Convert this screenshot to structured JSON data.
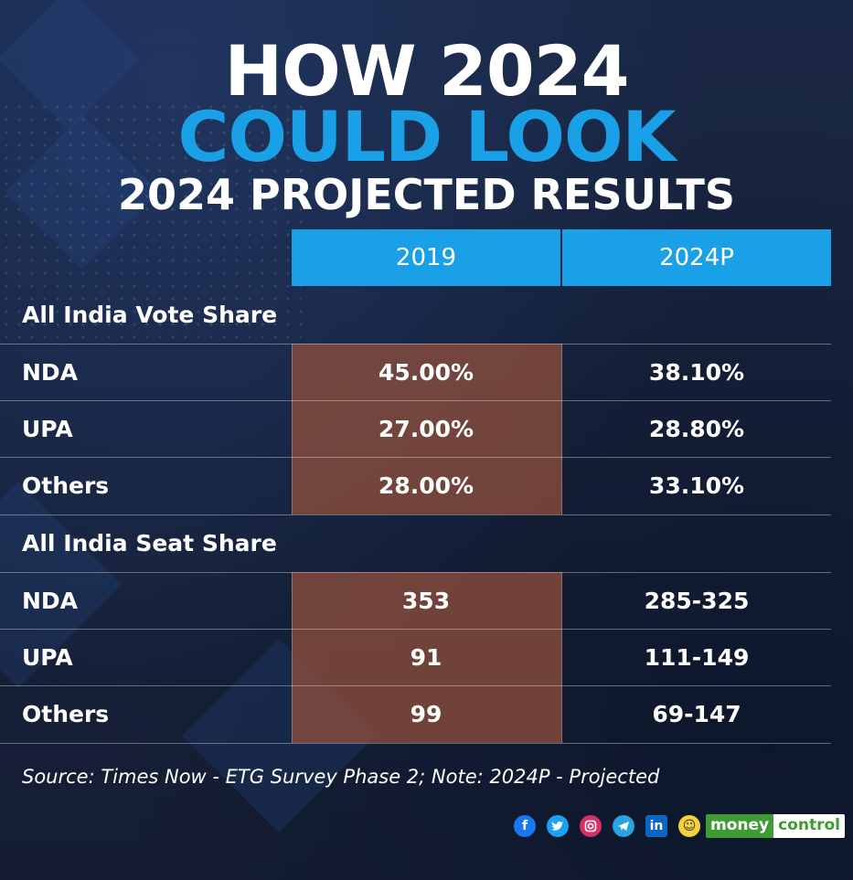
{
  "header": {
    "line1": "HOW 2024",
    "line2": "COULD LOOK",
    "line3": "2024 PROJECTED RESULTS"
  },
  "chart_data": {
    "type": "table",
    "columns": [
      "2019",
      "2024P"
    ],
    "sections": [
      {
        "title": "All India Vote Share",
        "rows": [
          {
            "label": "NDA",
            "values": [
              "45.00%",
              "38.10%"
            ]
          },
          {
            "label": "UPA",
            "values": [
              "27.00%",
              "28.80%"
            ]
          },
          {
            "label": "Others",
            "values": [
              "28.00%",
              "33.10%"
            ]
          }
        ]
      },
      {
        "title": "All India Seat Share",
        "rows": [
          {
            "label": "NDA",
            "values": [
              "353",
              "285-325"
            ]
          },
          {
            "label": "UPA",
            "values": [
              "91",
              "111-149"
            ]
          },
          {
            "label": "Others",
            "values": [
              "99",
              "69-147"
            ]
          }
        ]
      }
    ]
  },
  "footer": {
    "source": "Source: Times Now - ETG Survey Phase 2; Note: 2024P - Projected",
    "social_icons": [
      "facebook-icon",
      "twitter-icon",
      "instagram-icon",
      "telegram-icon",
      "linkedin-icon",
      "koo-icon"
    ],
    "brand_part1": "money",
    "brand_part2": "control"
  },
  "colors": {
    "background": "#16213a",
    "accent_blue": "#1aa0e6",
    "highlight_brown": "#96523c"
  }
}
